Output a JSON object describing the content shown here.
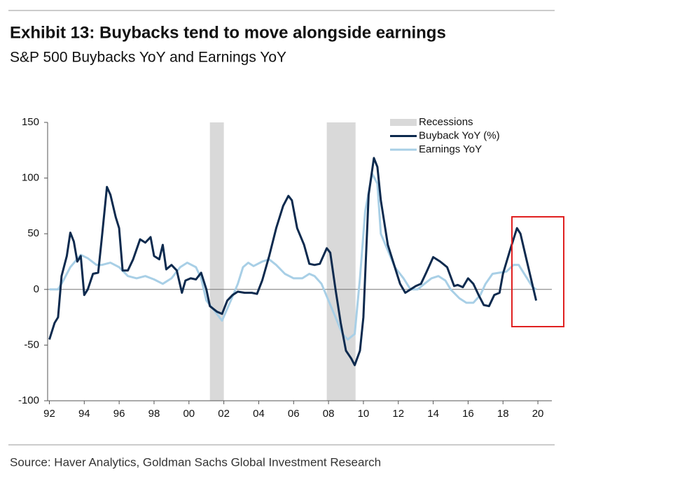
{
  "chart_data": {
    "type": "line",
    "title": "Exhibit 13: Buybacks tend to move alongside earnings",
    "subtitle": "S&P 500 Buybacks YoY and Earnings YoY",
    "source": "Source: Haver Analytics, Goldman Sachs Global Investment Research",
    "xlim": [
      1991.9,
      2020.8
    ],
    "xticks": [
      {
        "value": 1992,
        "label": "92"
      },
      {
        "value": 1994,
        "label": "94"
      },
      {
        "value": 1996,
        "label": "96"
      },
      {
        "value": 1998,
        "label": "98"
      },
      {
        "value": 2000,
        "label": "00"
      },
      {
        "value": 2002,
        "label": "02"
      },
      {
        "value": 2004,
        "label": "04"
      },
      {
        "value": 2006,
        "label": "06"
      },
      {
        "value": 2008,
        "label": "08"
      },
      {
        "value": 2010,
        "label": "10"
      },
      {
        "value": 2012,
        "label": "12"
      },
      {
        "value": 2014,
        "label": "14"
      },
      {
        "value": 2016,
        "label": "16"
      },
      {
        "value": 2018,
        "label": "18"
      },
      {
        "value": 2020,
        "label": "20"
      }
    ],
    "ylim": [
      -100,
      150
    ],
    "yticks": [
      150,
      100,
      50,
      0,
      -50,
      -100
    ],
    "recessions": {
      "name": "Recessions",
      "color": "#d9d9d9",
      "spans": [
        [
          2001.2,
          2002.0
        ],
        [
          2007.9,
          2009.55
        ]
      ]
    },
    "series": [
      {
        "name": "Buyback YoY (%)",
        "color": "#0d2a4e",
        "x": [
          1992.0,
          1992.3,
          1992.5,
          1992.7,
          1993.0,
          1993.2,
          1993.4,
          1993.6,
          1993.8,
          1994.0,
          1994.2,
          1994.5,
          1994.8,
          1995.0,
          1995.3,
          1995.5,
          1995.8,
          1996.0,
          1996.2,
          1996.5,
          1996.8,
          1997.2,
          1997.5,
          1997.8,
          1998.0,
          1998.3,
          1998.5,
          1998.7,
          1999.0,
          1999.3,
          1999.6,
          1999.8,
          2000.1,
          2000.4,
          2000.7,
          2001.0,
          2001.2,
          2001.6,
          2001.9,
          2002.2,
          2002.5,
          2002.8,
          2003.2,
          2003.6,
          2003.9,
          2004.2,
          2004.6,
          2005.0,
          2005.4,
          2005.7,
          2005.9,
          2006.2,
          2006.6,
          2006.9,
          2007.2,
          2007.5,
          2007.9,
          2008.1,
          2008.4,
          2008.7,
          2009.0,
          2009.3,
          2009.5,
          2009.8,
          2010.0,
          2010.3,
          2010.6,
          2010.8,
          2011.0,
          2011.4,
          2011.8,
          2012.1,
          2012.4,
          2012.7,
          2013.0,
          2013.3,
          2013.6,
          2014.0,
          2014.4,
          2014.8,
          2015.2,
          2015.4,
          2015.7,
          2016.0,
          2016.3,
          2016.6,
          2016.9,
          2017.2,
          2017.5,
          2017.8,
          2018.0,
          2018.4,
          2018.8,
          2019.0,
          2019.3,
          2019.6,
          2019.9
        ],
        "values": [
          -45,
          -30,
          -25,
          12,
          30,
          51,
          43,
          25,
          30,
          -5,
          0,
          14,
          15,
          45,
          92,
          85,
          65,
          55,
          17,
          17,
          27,
          45,
          42,
          47,
          30,
          27,
          40,
          18,
          22,
          17,
          -3,
          8,
          10,
          9,
          15,
          0,
          -15,
          -20,
          -22,
          -10,
          -5,
          -2,
          -3,
          -3,
          -4,
          8,
          30,
          55,
          75,
          84,
          80,
          55,
          40,
          23,
          22,
          23,
          37,
          33,
          0,
          -30,
          -55,
          -62,
          -68,
          -55,
          -25,
          85,
          118,
          110,
          80,
          40,
          20,
          5,
          -3,
          0,
          3,
          5,
          15,
          29,
          25,
          20,
          3,
          4,
          2,
          10,
          5,
          -5,
          -14,
          -15,
          -5,
          -3,
          14,
          35,
          55,
          50,
          30,
          10,
          -10
        ]
      },
      {
        "name": "Earnings YoY",
        "color": "#a8cfe6",
        "x": [
          1992.0,
          1992.5,
          1992.8,
          1993.2,
          1993.8,
          1994.2,
          1994.7,
          1995.0,
          1995.5,
          1996.0,
          1996.5,
          1997.0,
          1997.5,
          1998.0,
          1998.5,
          1999.0,
          1999.5,
          1999.9,
          2000.4,
          2000.7,
          2001.0,
          2001.5,
          2001.9,
          2002.4,
          2002.8,
          2003.1,
          2003.4,
          2003.7,
          2004.2,
          2004.6,
          2005.0,
          2005.5,
          2006.0,
          2006.5,
          2006.9,
          2007.2,
          2007.6,
          2008.0,
          2008.4,
          2008.8,
          2009.1,
          2009.5,
          2009.8,
          2010.1,
          2010.5,
          2010.8,
          2011.0,
          2011.4,
          2011.8,
          2012.3,
          2012.7,
          2013.1,
          2013.5,
          2013.9,
          2014.3,
          2014.7,
          2015.0,
          2015.5,
          2015.9,
          2016.3,
          2016.7,
          2017.0,
          2017.4,
          2017.8,
          2018.2,
          2018.6,
          2018.9,
          2019.3,
          2019.7,
          2019.9
        ],
        "values": [
          0,
          0,
          8,
          20,
          31,
          28,
          22,
          22,
          24,
          20,
          12,
          10,
          12,
          9,
          5,
          10,
          20,
          24,
          20,
          10,
          -10,
          -20,
          -28,
          -10,
          5,
          20,
          24,
          21,
          25,
          27,
          22,
          14,
          10,
          10,
          14,
          12,
          5,
          -10,
          -25,
          -40,
          -45,
          -40,
          10,
          70,
          104,
          95,
          50,
          35,
          20,
          10,
          0,
          0,
          5,
          10,
          12,
          8,
          0,
          -8,
          -12,
          -12,
          -5,
          5,
          14,
          15,
          16,
          22,
          22,
          12,
          2,
          0
        ]
      }
    ]
  }
}
